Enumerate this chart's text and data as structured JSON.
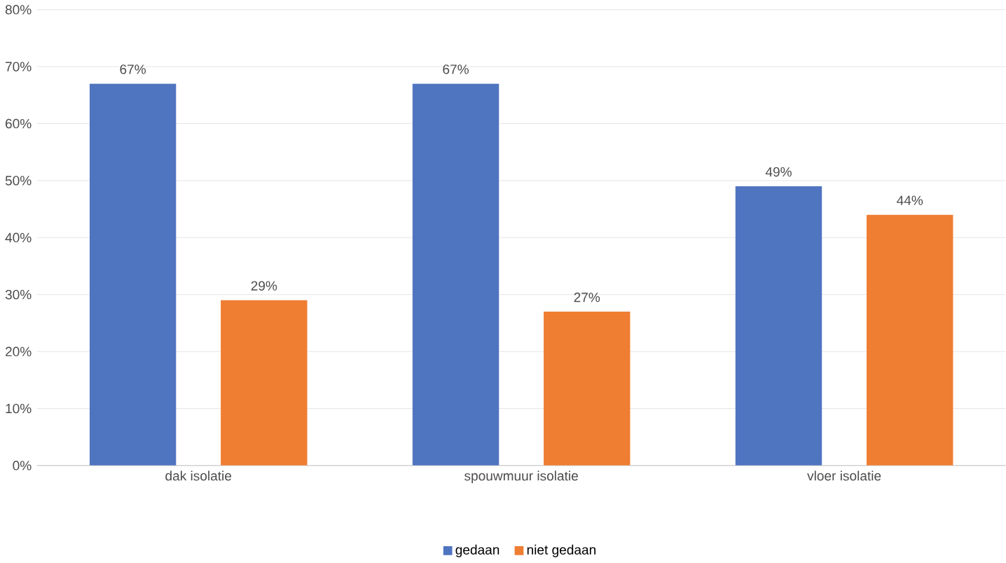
{
  "chart_data": {
    "type": "bar",
    "categories": [
      "dak isolatie",
      "spouwmuur isolatie",
      "vloer isolatie"
    ],
    "series": [
      {
        "name": "gedaan",
        "color": "#4f74c0",
        "values": [
          67,
          67,
          49
        ],
        "value_labels": [
          "67%",
          "67%",
          "49%"
        ]
      },
      {
        "name": "niet gedaan",
        "color": "#ef7d32",
        "values": [
          29,
          27,
          44
        ],
        "value_labels": [
          "29%",
          "27%",
          "44%"
        ]
      }
    ],
    "ylim": [
      0,
      80
    ],
    "yticks": [
      {
        "value": 0,
        "label": "0%"
      },
      {
        "value": 10,
        "label": "10%"
      },
      {
        "value": 20,
        "label": "20%"
      },
      {
        "value": 30,
        "label": "30%"
      },
      {
        "value": 40,
        "label": "40%"
      },
      {
        "value": 50,
        "label": "50%"
      },
      {
        "value": 60,
        "label": "60%"
      },
      {
        "value": 70,
        "label": "70%"
      },
      {
        "value": 80,
        "label": "80%"
      }
    ],
    "grid": "y",
    "legend": "bottom"
  }
}
